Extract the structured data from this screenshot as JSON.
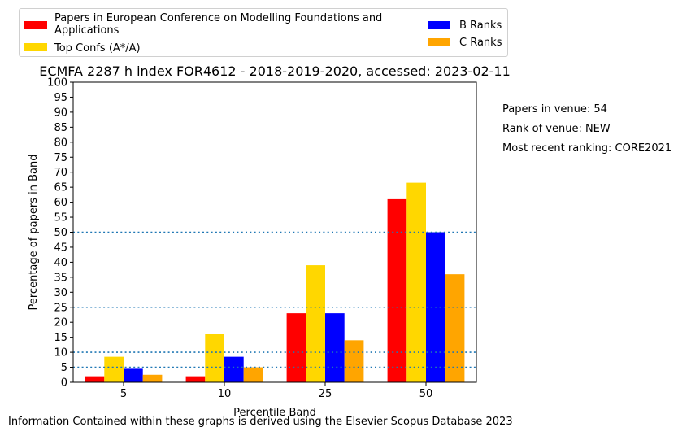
{
  "chart_data": {
    "type": "bar",
    "title": "ECMFA 2287 h index FOR4612 - 2018-2019-2020, accessed: 2023-02-11",
    "xlabel": "Percentile Band",
    "ylabel": "Percentage of papers in Band",
    "categories": [
      "5",
      "10",
      "25",
      "50"
    ],
    "ylim": [
      0,
      100
    ],
    "yticks": [
      0,
      5,
      10,
      15,
      20,
      25,
      30,
      35,
      40,
      45,
      50,
      55,
      60,
      65,
      70,
      75,
      80,
      85,
      90,
      95,
      100
    ],
    "reference_lines": [
      5,
      10,
      25,
      50
    ],
    "grid": false,
    "legend_position": "top",
    "series": [
      {
        "name": "Papers in European Conference on Modelling Foundations and Applications",
        "color": "#ff0000",
        "values": [
          2,
          2,
          23,
          61
        ]
      },
      {
        "name": "Top Confs (A*/A)",
        "color": "#ffd700",
        "values": [
          8.5,
          16,
          39,
          66.5
        ]
      },
      {
        "name": "B Ranks",
        "color": "#0000ff",
        "values": [
          4.5,
          8.5,
          23,
          50
        ]
      },
      {
        "name": "C Ranks",
        "color": "#ffa500",
        "values": [
          2.5,
          5,
          14,
          36
        ]
      }
    ]
  },
  "legend": {
    "item1_line1": "Papers in European Conference on Modelling Foundations and",
    "item1_line2": "Applications",
    "item2": "Top Confs (A*/A)",
    "item3": "B Ranks",
    "item4": "C Ranks"
  },
  "side_info": {
    "papers": "Papers in venue: 54",
    "rank": "Rank of venue: NEW",
    "recent": "Most recent ranking: CORE2021"
  },
  "footer": "Information Contained within these graphs is derived using the Elsevier Scopus Database 2023"
}
